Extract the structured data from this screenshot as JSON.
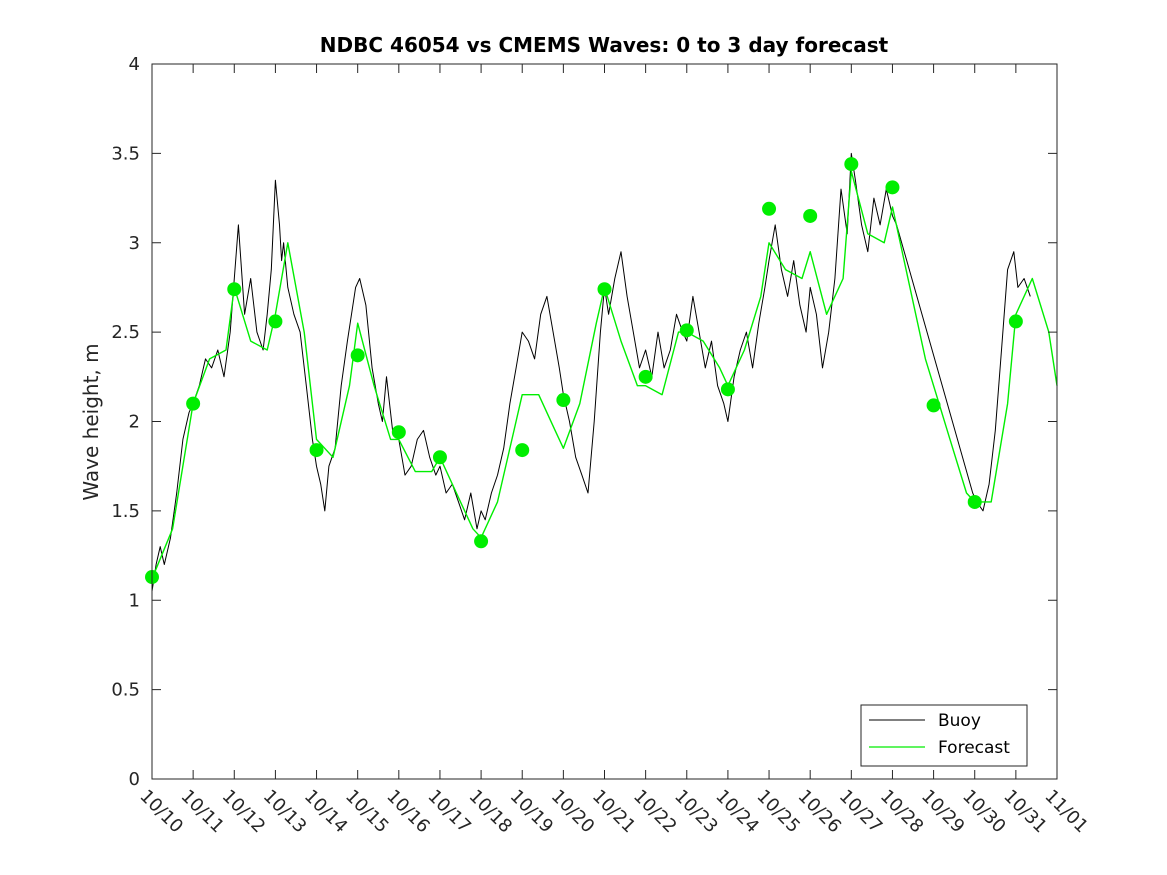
{
  "chart_data": {
    "type": "line",
    "title": "NDBC 46054 vs CMEMS Waves: 0 to 3 day forecast",
    "xlabel": "",
    "ylabel": "Wave height, m",
    "xlim": [
      0,
      22
    ],
    "ylim": [
      0,
      4
    ],
    "y_ticks": [
      "0",
      "0.5",
      "1",
      "1.5",
      "2",
      "2.5",
      "3",
      "3.5",
      "4"
    ],
    "y_tick_values": [
      0,
      0.5,
      1,
      1.5,
      2,
      2.5,
      3,
      3.5,
      4
    ],
    "x_tick_labels": [
      "10/10",
      "10/11",
      "10/12",
      "10/13",
      "10/14",
      "10/15",
      "10/16",
      "10/17",
      "10/18",
      "10/19",
      "10/20",
      "10/21",
      "10/22",
      "10/23",
      "10/24",
      "10/25",
      "10/26",
      "10/27",
      "10/28",
      "10/29",
      "10/30",
      "10/31",
      "11/01"
    ],
    "legend": {
      "position": "bottom-right",
      "entries": [
        "Buoy",
        "Forecast"
      ]
    },
    "colors": {
      "buoy": "#000000",
      "forecast": "#00ee00",
      "markers": "#00ee00",
      "axis": "#262626"
    },
    "series": [
      {
        "name": "Buoy",
        "x": [
          0,
          0.1,
          0.2,
          0.3,
          0.45,
          0.6,
          0.75,
          0.9,
          1.0,
          1.15,
          1.3,
          1.45,
          1.6,
          1.75,
          1.9,
          2.0,
          2.1,
          2.25,
          2.4,
          2.55,
          2.7,
          2.8,
          2.9,
          3.0,
          3.1,
          3.15,
          3.2,
          3.3,
          3.45,
          3.6,
          3.75,
          3.9,
          4.0,
          4.1,
          4.2,
          4.3,
          4.45,
          4.6,
          4.75,
          4.85,
          4.95,
          5.05,
          5.2,
          5.35,
          5.5,
          5.6,
          5.7,
          5.85,
          6.0,
          6.15,
          6.3,
          6.45,
          6.6,
          6.75,
          6.9,
          7.0,
          7.15,
          7.3,
          7.45,
          7.6,
          7.75,
          7.9,
          8.0,
          8.1,
          8.25,
          8.4,
          8.55,
          8.7,
          8.85,
          9.0,
          9.15,
          9.3,
          9.45,
          9.6,
          9.75,
          9.9,
          10.0,
          10.15,
          10.3,
          10.45,
          10.6,
          10.75,
          10.9,
          11.0,
          11.1,
          11.25,
          11.4,
          11.55,
          11.7,
          11.85,
          12.0,
          12.15,
          12.3,
          12.45,
          12.6,
          12.75,
          12.9,
          13.0,
          13.15,
          13.3,
          13.45,
          13.6,
          13.75,
          13.9,
          14.0,
          14.15,
          14.3,
          14.45,
          14.6,
          14.75,
          14.9,
          15.0,
          15.15,
          15.3,
          15.45,
          15.6,
          15.75,
          15.9,
          16.0,
          16.15,
          16.3,
          16.45,
          16.6,
          16.75,
          16.9,
          17.0,
          17.1,
          17.25,
          17.4,
          17.55,
          17.7,
          17.85,
          18.0,
          18.1,
          19.95,
          20.05,
          20.2,
          20.35,
          20.5,
          20.65,
          20.8,
          20.95,
          21.05,
          21.2,
          21.35
        ],
        "values": [
          1.05,
          1.2,
          1.3,
          1.2,
          1.35,
          1.6,
          1.9,
          2.05,
          2.1,
          2.2,
          2.35,
          2.3,
          2.4,
          2.25,
          2.5,
          2.8,
          3.1,
          2.6,
          2.8,
          2.5,
          2.4,
          2.6,
          2.85,
          3.35,
          3.1,
          2.9,
          3.0,
          2.75,
          2.6,
          2.5,
          2.2,
          1.9,
          1.75,
          1.65,
          1.5,
          1.75,
          1.85,
          2.2,
          2.45,
          2.6,
          2.75,
          2.8,
          2.65,
          2.3,
          2.1,
          2.0,
          2.25,
          1.95,
          1.9,
          1.7,
          1.75,
          1.9,
          1.95,
          1.8,
          1.7,
          1.75,
          1.6,
          1.65,
          1.55,
          1.45,
          1.6,
          1.4,
          1.5,
          1.45,
          1.6,
          1.7,
          1.85,
          2.1,
          2.3,
          2.5,
          2.45,
          2.35,
          2.6,
          2.7,
          2.5,
          2.3,
          2.15,
          2.0,
          1.8,
          1.7,
          1.6,
          2.0,
          2.5,
          2.75,
          2.6,
          2.8,
          2.95,
          2.7,
          2.5,
          2.3,
          2.4,
          2.25,
          2.5,
          2.3,
          2.4,
          2.6,
          2.5,
          2.45,
          2.7,
          2.5,
          2.3,
          2.45,
          2.2,
          2.1,
          2.0,
          2.25,
          2.4,
          2.5,
          2.3,
          2.55,
          2.75,
          2.9,
          3.1,
          2.85,
          2.7,
          2.9,
          2.65,
          2.5,
          2.75,
          2.6,
          2.3,
          2.5,
          2.8,
          3.3,
          3.05,
          3.5,
          3.35,
          3.1,
          2.95,
          3.25,
          3.1,
          3.3,
          3.15,
          3.1,
          1.6,
          1.55,
          1.5,
          1.65,
          1.95,
          2.4,
          2.85,
          2.95,
          2.75,
          2.8,
          2.7
        ]
      },
      {
        "name": "Forecast",
        "x": [
          0,
          0.5,
          1.0,
          1.4,
          1.8,
          2.0,
          2.4,
          2.8,
          3.0,
          3.3,
          3.7,
          4.0,
          4.4,
          4.8,
          5.0,
          5.4,
          5.8,
          6.0,
          6.4,
          6.8,
          7.0,
          7.4,
          7.8,
          8.0,
          8.4,
          8.8,
          9.0,
          9.4,
          9.8,
          10.0,
          10.4,
          10.8,
          11.0,
          11.4,
          11.8,
          12.0,
          12.4,
          12.8,
          13.0,
          13.4,
          13.8,
          14.0,
          14.4,
          14.8,
          15.0,
          15.4,
          15.8,
          16.0,
          16.4,
          16.8,
          17.0,
          17.4,
          17.8,
          18.0,
          18.8,
          19.4,
          19.8,
          20.0,
          20.4,
          20.8,
          21.0,
          21.4,
          21.8,
          22.0
        ],
        "values": [
          1.12,
          1.4,
          2.1,
          2.35,
          2.4,
          2.75,
          2.45,
          2.4,
          2.6,
          3.0,
          2.5,
          1.9,
          1.8,
          2.2,
          2.55,
          2.2,
          1.9,
          1.9,
          1.72,
          1.72,
          1.8,
          1.6,
          1.4,
          1.35,
          1.55,
          1.95,
          2.15,
          2.15,
          1.95,
          1.85,
          2.1,
          2.55,
          2.75,
          2.45,
          2.2,
          2.2,
          2.15,
          2.5,
          2.5,
          2.45,
          2.3,
          2.2,
          2.4,
          2.7,
          3.0,
          2.85,
          2.8,
          2.95,
          2.6,
          2.8,
          3.4,
          3.05,
          3.0,
          3.2,
          2.35,
          1.9,
          1.6,
          1.55,
          1.55,
          2.1,
          2.6,
          2.8,
          2.5,
          2.2
        ]
      }
    ],
    "markers": {
      "name": "Forecast analysis points",
      "x": [
        0,
        1,
        2,
        3,
        4,
        5,
        6,
        7,
        8,
        9,
        10,
        11,
        12,
        13,
        14,
        15,
        16,
        17,
        18,
        19,
        20,
        21
      ],
      "values": [
        1.13,
        2.1,
        2.74,
        2.56,
        1.84,
        2.37,
        1.94,
        1.8,
        1.33,
        1.84,
        2.12,
        2.74,
        2.25,
        2.51,
        2.18,
        3.19,
        3.15,
        3.44,
        3.31,
        2.09,
        1.55,
        2.56
      ]
    }
  }
}
